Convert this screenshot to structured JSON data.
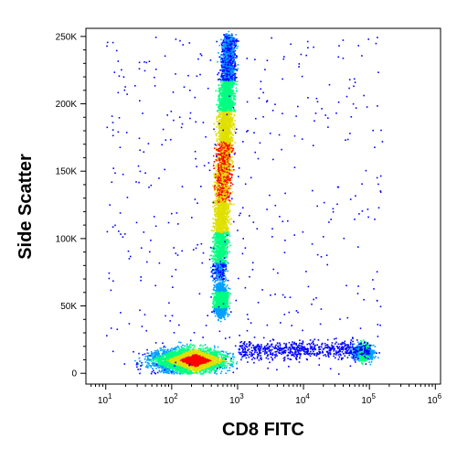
{
  "chart_data": {
    "type": "scatter",
    "subtype": "flow-cytometry-density-dot-plot",
    "xlabel": "CD8 FITC",
    "ylabel": "Side Scatter",
    "x_scale": "log",
    "xlim": [
      5,
      1200000
    ],
    "ylim": [
      -8000,
      256000
    ],
    "x_ticks": [
      {
        "value": 10,
        "base": "10",
        "exp": "1"
      },
      {
        "value": 100,
        "base": "10",
        "exp": "2"
      },
      {
        "value": 1000,
        "base": "10",
        "exp": "3"
      },
      {
        "value": 10000,
        "base": "10",
        "exp": "4"
      },
      {
        "value": 100000,
        "base": "10",
        "exp": "5"
      },
      {
        "value": 1000000,
        "base": "10",
        "exp": "6"
      }
    ],
    "y_ticks": [
      {
        "value": 0,
        "label": "0"
      },
      {
        "value": 50000,
        "label": "50K"
      },
      {
        "value": 100000,
        "label": "100K"
      },
      {
        "value": 150000,
        "label": "150K"
      },
      {
        "value": 200000,
        "label": "200K"
      },
      {
        "value": 250000,
        "label": "250K"
      }
    ],
    "density_colormap": [
      "#0000ff",
      "#00a0ff",
      "#00ff80",
      "#e0e000",
      "#ff0000"
    ],
    "populations": [
      {
        "x_median": 600,
        "y_from": 70000,
        "y_to": 250000,
        "y_peak": 150000
      },
      {
        "x_median": 550,
        "y_from": 40000,
        "y_to": 70000,
        "y_peak": 55000
      },
      {
        "x_median": 200,
        "y_from": 0,
        "y_to": 20000,
        "y_peak": 10000
      },
      {
        "x_median": 80000,
        "y_from": 10000,
        "y_to": 25000,
        "y_peak": 16000
      }
    ]
  }
}
